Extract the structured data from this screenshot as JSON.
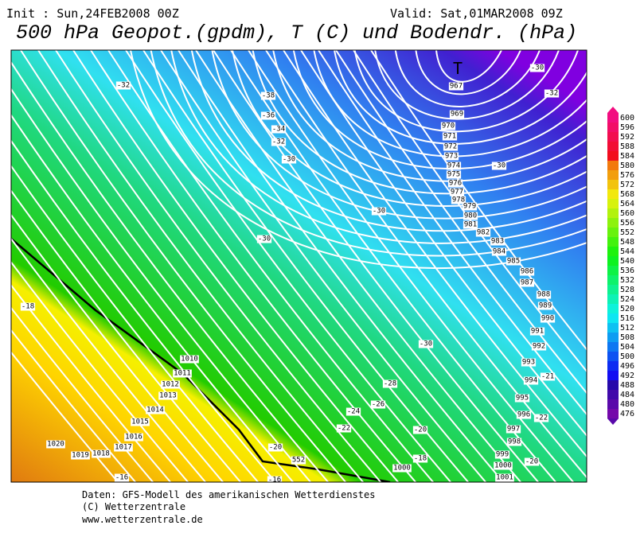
{
  "header": {
    "init": "Init : Sun,24FEB2008 00Z",
    "valid": "Valid: Sat,01MAR2008 09Z",
    "title": "500 hPa Geopot.(gpdm), T (C) und Bodendr. (hPa)"
  },
  "map": {
    "low_marker": "T",
    "isobar_labels": [
      967,
      969,
      970,
      971,
      972,
      973,
      974,
      975,
      976,
      977,
      978,
      979,
      980,
      981,
      982,
      983,
      984,
      985,
      986,
      987,
      988,
      989,
      990,
      991,
      992,
      993,
      994,
      995,
      996,
      997,
      998,
      999,
      1000,
      1001,
      1000,
      1010,
      1011,
      1012,
      1013,
      1014,
      1015,
      1016,
      1017,
      1018,
      1019,
      1020
    ],
    "temperature_labels": [
      -32,
      -38,
      -36,
      -34,
      -32,
      -30,
      -30,
      -32,
      -30,
      -30,
      -30,
      -30,
      -18,
      -21,
      -28,
      -26,
      -24,
      -22,
      -22,
      -20,
      -20,
      -20,
      -18,
      -16,
      -16
    ],
    "contour_label": 552
  },
  "colorbar": {
    "levels": [
      600,
      596,
      592,
      588,
      584,
      580,
      576,
      572,
      568,
      564,
      560,
      556,
      552,
      548,
      544,
      540,
      536,
      532,
      528,
      524,
      520,
      516,
      512,
      508,
      504,
      500,
      496,
      492,
      488,
      484,
      480,
      476
    ]
  },
  "footer": {
    "lines": [
      "Daten: GFS-Modell des amerikanischen Wetterdienstes",
      "(C) Wetterzentrale",
      "www.wetterzentrale.de"
    ]
  }
}
